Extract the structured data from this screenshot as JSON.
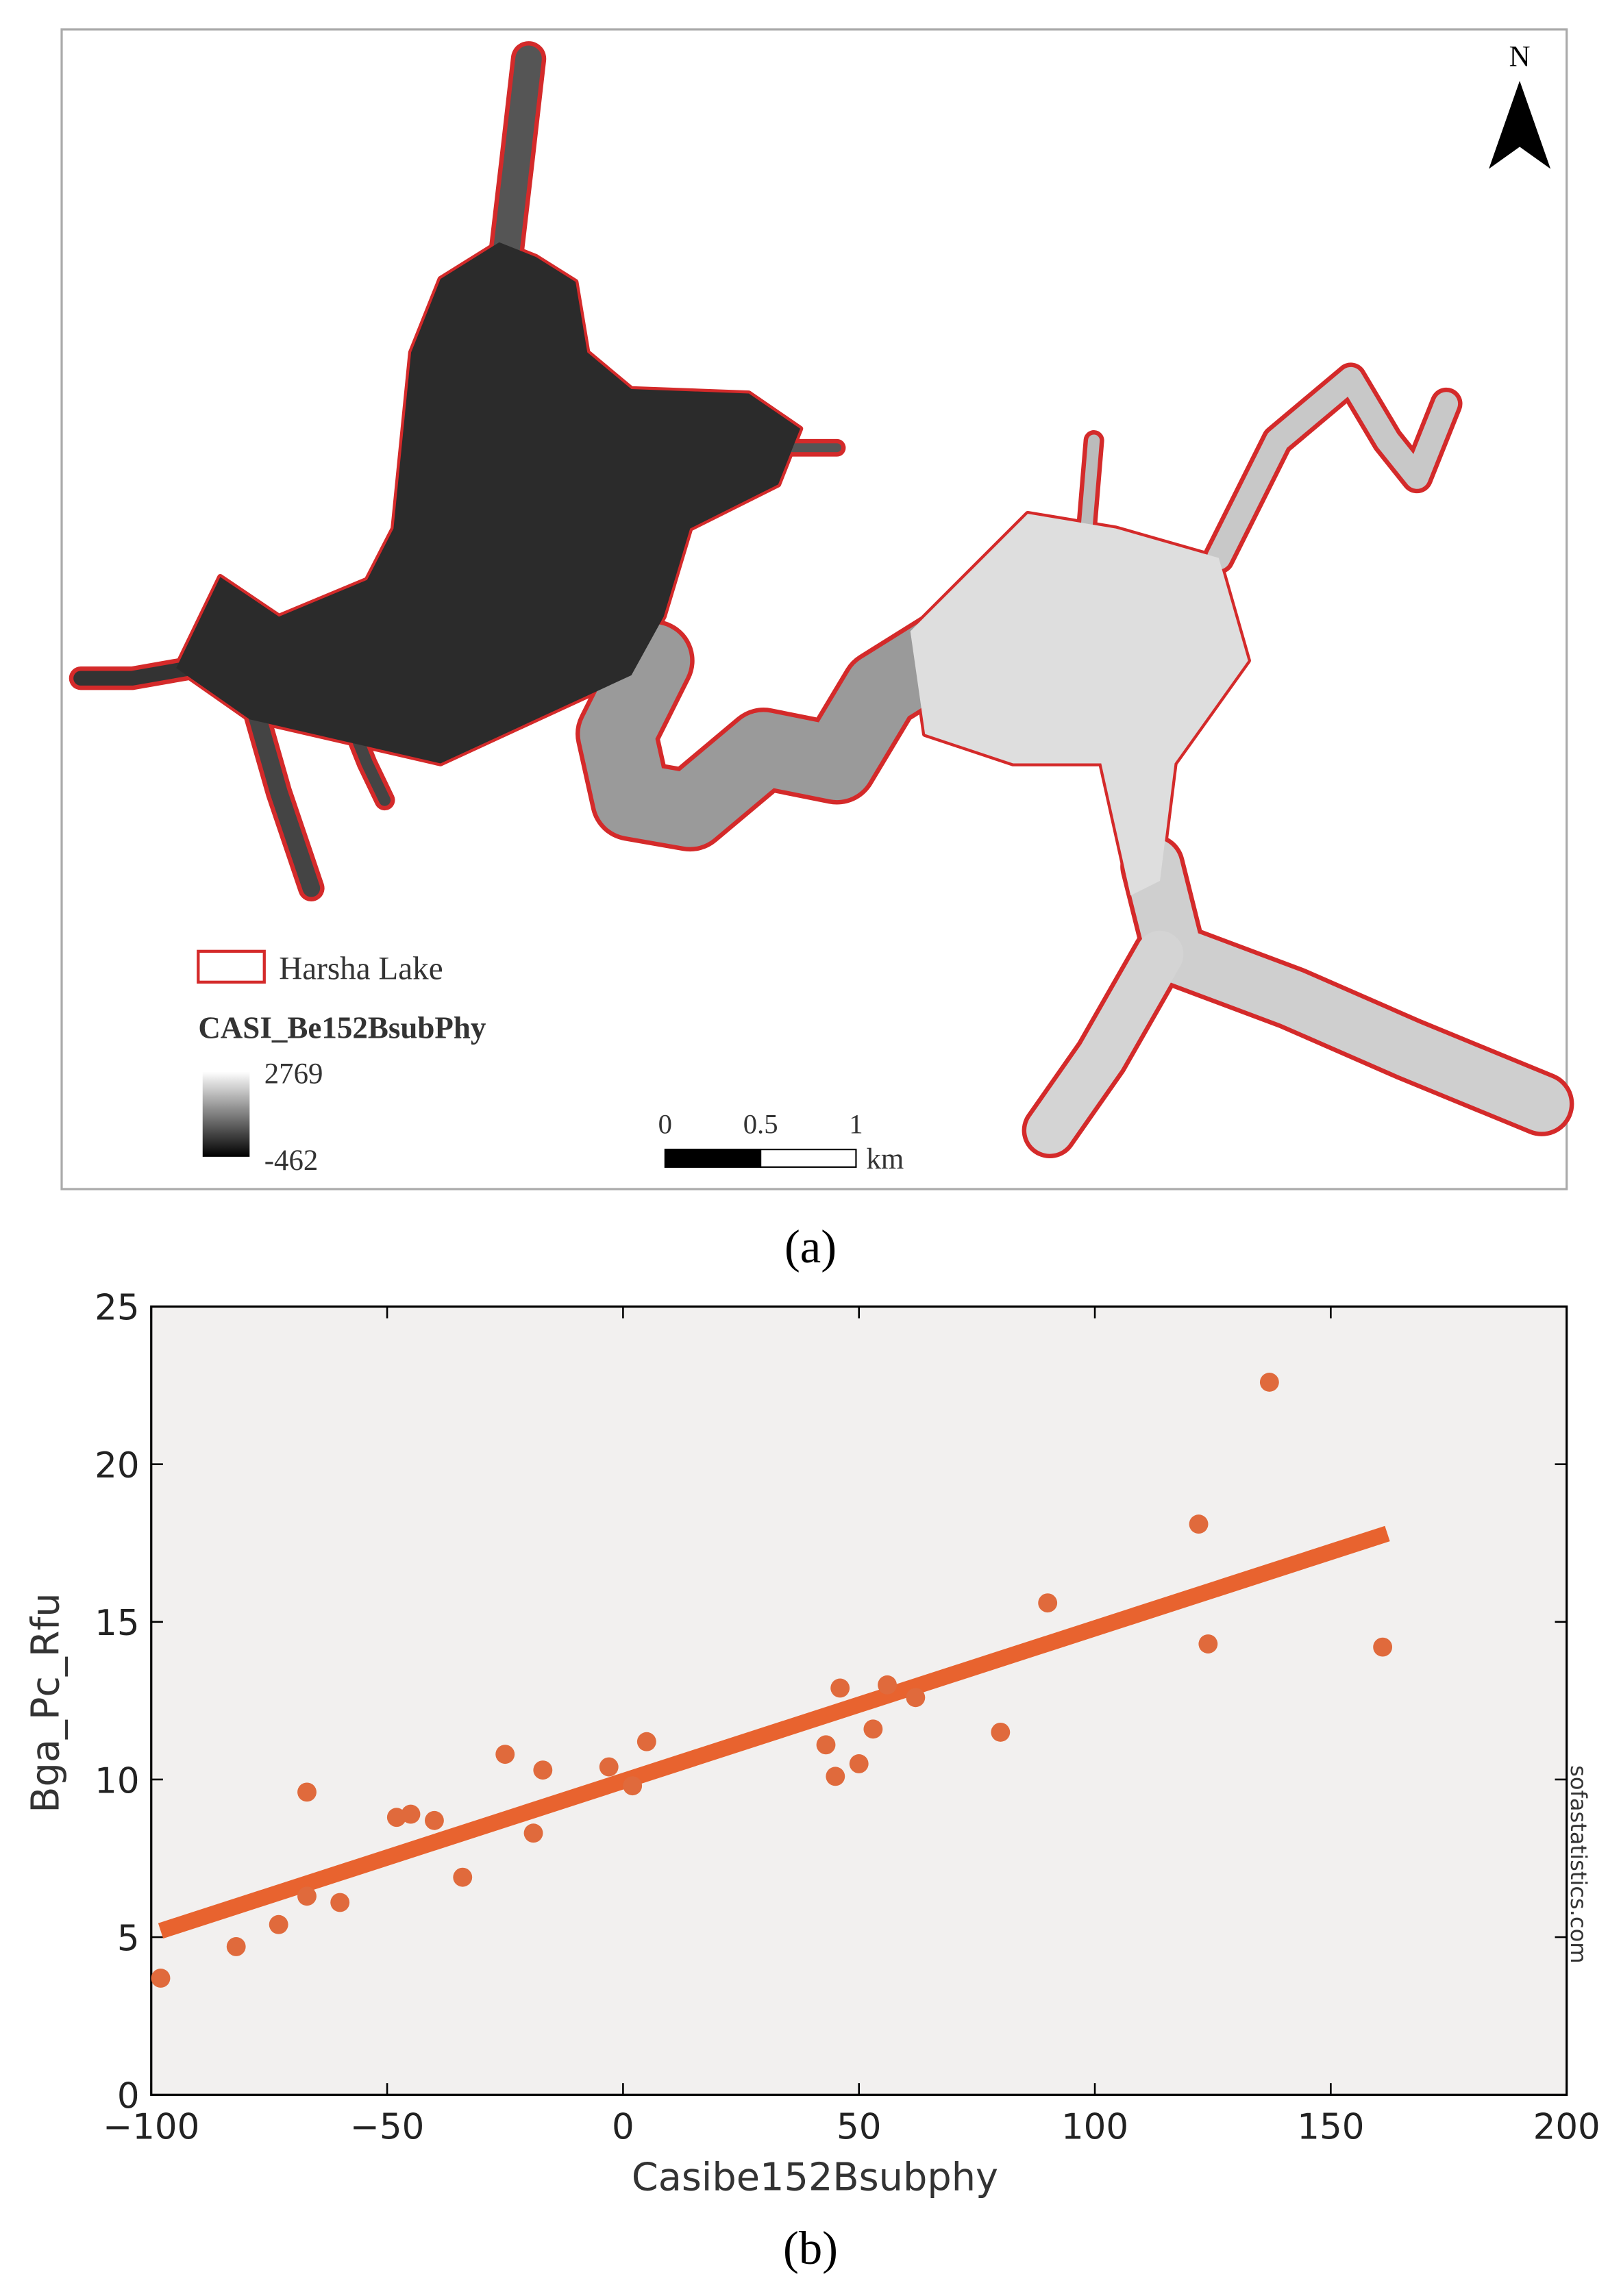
{
  "map": {
    "north": "N",
    "legend": {
      "label": "Harsha Lake",
      "layer": "CASI_Be152BsubPhy",
      "max": 2769,
      "min": -462
    },
    "scale_bar": {
      "ticks": [
        0,
        0.5,
        1
      ],
      "unit": "km"
    },
    "caption": "(a)"
  },
  "chart_data": {
    "type": "scatter",
    "x_label": "Casibe152Bsubphy",
    "y_label": "Bga_Pc_Rfu",
    "x": [
      -98,
      -82,
      -73,
      -67,
      -67,
      -60,
      -48,
      -45,
      -40,
      -34,
      -25,
      -19,
      -17,
      -3,
      2,
      5,
      43,
      45,
      46,
      50,
      53,
      56,
      62,
      80,
      90,
      122,
      124,
      137,
      161
    ],
    "values": [
      3.7,
      4.7,
      5.4,
      6.3,
      9.6,
      6.1,
      8.8,
      8.9,
      8.7,
      6.9,
      10.8,
      8.3,
      10.3,
      10.4,
      9.8,
      11.2,
      11.1,
      10.1,
      12.9,
      10.5,
      11.6,
      13.0,
      12.6,
      11.5,
      15.6,
      18.1,
      14.3,
      22.6,
      14.2
    ],
    "color": "#e06a3c",
    "trendline": {
      "x": [
        -98,
        162
      ],
      "values": [
        5.2,
        17.8
      ],
      "color": "#e8632f"
    },
    "xlim": [
      -100,
      200
    ],
    "xticks": [
      {
        "value": -100,
        "label": "−100"
      },
      {
        "value": -50,
        "label": "−50"
      },
      0,
      50,
      100,
      150,
      200
    ],
    "ylim": [
      0,
      25
    ],
    "yticks": [
      0,
      5,
      10,
      15,
      20,
      25
    ],
    "background": "#f2f0ef",
    "watermark": "sofastatistics.com",
    "caption": "(b)"
  }
}
